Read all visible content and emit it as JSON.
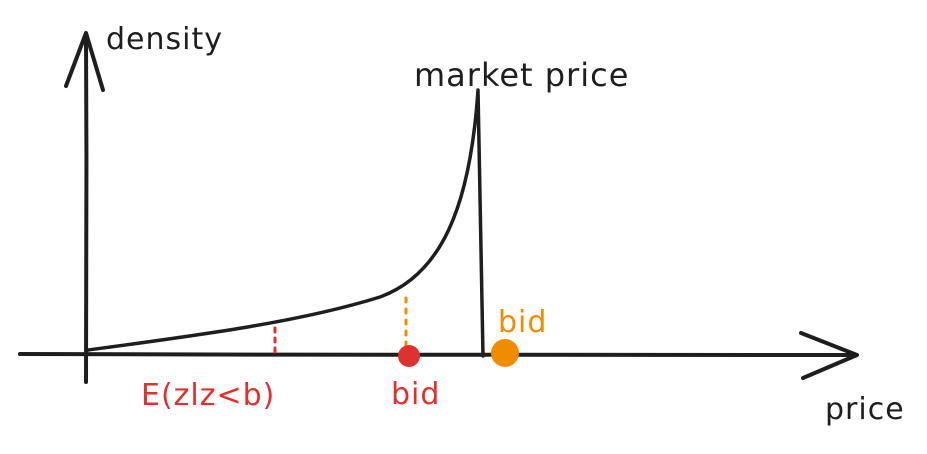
{
  "labels": {
    "y_axis": "density",
    "x_axis": "price",
    "peak": "market price",
    "conditional_expectation": "E(zlz<b)",
    "bid_low": "bid",
    "bid_high": "bid"
  },
  "colors": {
    "ink": "#1e1e1e",
    "red": "#e03131",
    "orange": "#f08c00"
  }
}
